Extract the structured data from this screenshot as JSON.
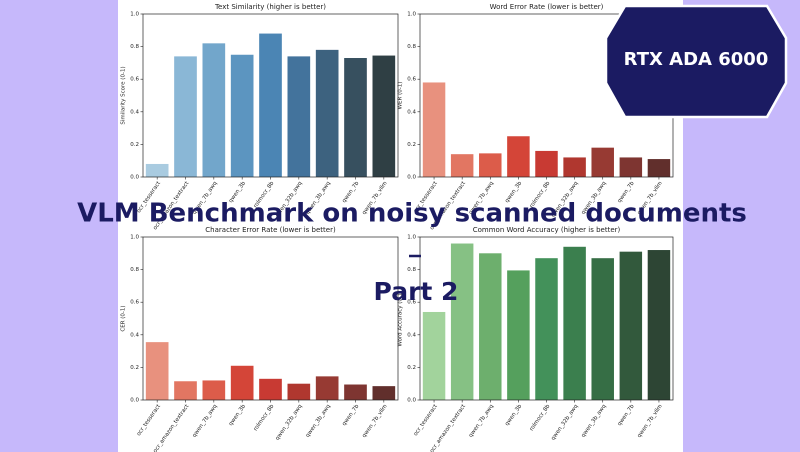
{
  "chart_data": [
    {
      "type": "bar",
      "title": "Text Similarity (higher is better)",
      "y_label": "Similarity Score (0-1)",
      "categories": [
        "ocr_tesseract",
        "ocr_amazon_textract",
        "qwen_7b_awq",
        "qwen_3b",
        "rolmocr_8b",
        "qwen_32b_awq",
        "qwen_3b_awq",
        "qwen_7b",
        "qwen_7b_vllm"
      ],
      "values": [
        0.08,
        0.74,
        0.82,
        0.75,
        0.88,
        0.74,
        0.78,
        0.73,
        0.745
      ],
      "colors": [
        "#a9cbe0",
        "#8ab7d6",
        "#72a6cb",
        "#5c95c0",
        "#4b85b4",
        "#43739c",
        "#3d627f",
        "#37505f",
        "#2f3f44"
      ],
      "ylim": [
        0,
        1
      ],
      "yticks": [
        {
          "value": 0,
          "label": "0.0"
        },
        0.2,
        0.4,
        0.6,
        0.8,
        {
          "value": 1,
          "label": "1.0"
        }
      ]
    },
    {
      "type": "bar",
      "title": "Word Error Rate (lower is better)",
      "y_label": "WER (0-1)",
      "categories": [
        "ocr_tesseract",
        "ocr_amazon_textract",
        "qwen_7b_awq",
        "qwen_3b",
        "rolmocr_8b",
        "qwen_32b_awq",
        "qwen_3b_awq",
        "qwen_7b",
        "qwen_7b_vllm"
      ],
      "values": [
        0.58,
        0.14,
        0.145,
        0.25,
        0.16,
        0.12,
        0.18,
        0.12,
        0.11
      ],
      "colors": [
        "#e8917e",
        "#e27662",
        "#dc5c4a",
        "#d44538",
        "#c83a33",
        "#b0372f",
        "#973a33",
        "#7e3531",
        "#612f2c"
      ],
      "ylim": [
        0,
        1
      ],
      "yticks": [
        {
          "value": 0,
          "label": "0.0"
        },
        0.2,
        0.4,
        0.6,
        0.8,
        {
          "value": 1,
          "label": "1.0"
        }
      ]
    },
    {
      "type": "bar",
      "title": "Character Error Rate (lower is better)",
      "y_label": "CER (0-1)",
      "categories": [
        "ocr_tesseract",
        "ocr_amazon_textract",
        "qwen_7b_awq",
        "qwen_3b",
        "rolmocr_8b",
        "qwen_32b_awq",
        "qwen_3b_awq",
        "qwen_7b",
        "qwen_7b_vllm"
      ],
      "values": [
        0.355,
        0.115,
        0.12,
        0.21,
        0.13,
        0.1,
        0.145,
        0.095,
        0.085
      ],
      "colors": [
        "#e8917e",
        "#e27662",
        "#dc5c4a",
        "#d44538",
        "#c83a33",
        "#b0372f",
        "#973a33",
        "#7e3531",
        "#612f2c"
      ],
      "ylim": [
        0,
        1
      ],
      "yticks": [
        {
          "value": 0,
          "label": "0.0"
        },
        0.2,
        0.4,
        0.6,
        0.8,
        {
          "value": 1,
          "label": "1.0"
        }
      ]
    },
    {
      "type": "bar",
      "title": "Common Word Accuracy (higher is better)",
      "y_label": "Word Accuracy (0-1)",
      "categories": [
        "ocr_tesseract",
        "ocr_amazon_textract",
        "qwen_7b_awq",
        "qwen_3b",
        "rolmocr_8b",
        "qwen_32b_awq",
        "qwen_3b_awq",
        "qwen_7b",
        "qwen_7b_vllm"
      ],
      "values": [
        0.54,
        0.96,
        0.9,
        0.795,
        0.87,
        0.94,
        0.87,
        0.91,
        0.92
      ],
      "colors": [
        "#a2d39c",
        "#86c184",
        "#6daf6d",
        "#55a05d",
        "#43915a",
        "#3b7f4e",
        "#366e45",
        "#32593c",
        "#2d4534"
      ],
      "ylim": [
        0,
        1
      ],
      "yticks": [
        {
          "value": 0,
          "label": "0.0"
        },
        0.2,
        0.4,
        0.6,
        0.8,
        {
          "value": 1,
          "label": "1.0"
        }
      ]
    }
  ],
  "overlay": {
    "title": "VLM Benchmark on noisy scanned documents",
    "subtitle": "Part 2",
    "badge": "RTX ADA 6000"
  }
}
